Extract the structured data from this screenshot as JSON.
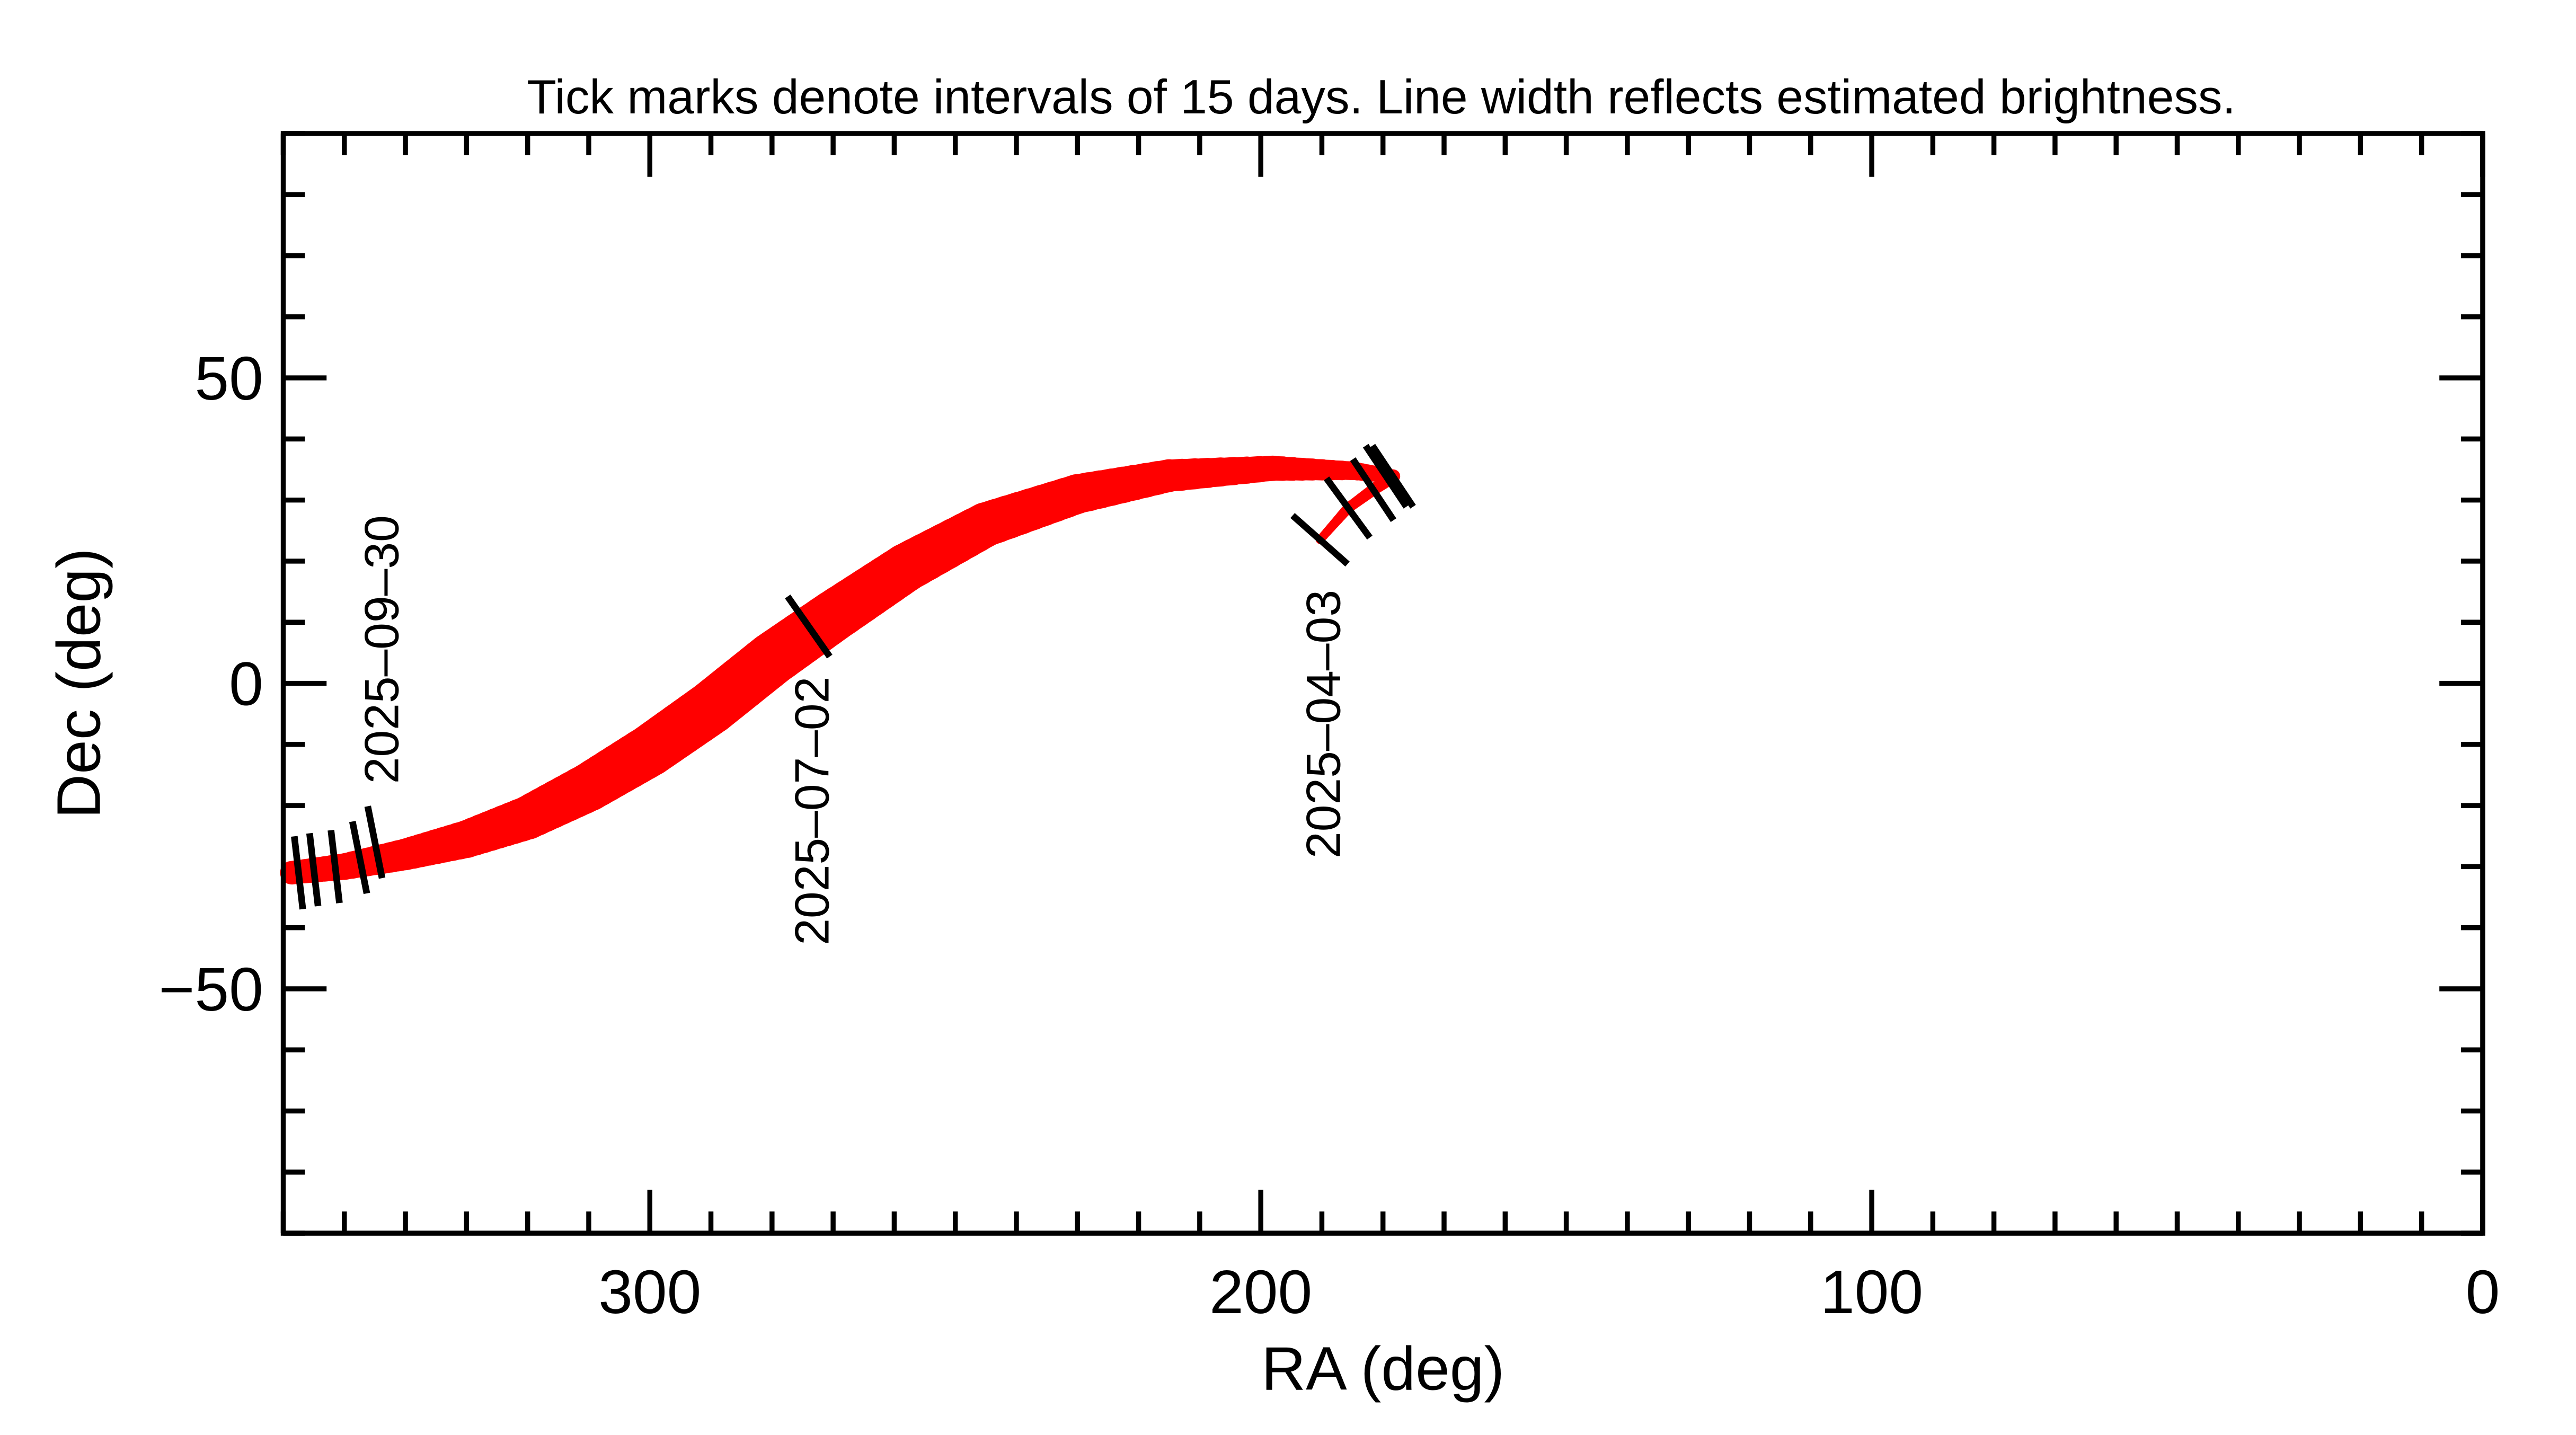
{
  "chart_data": {
    "type": "line",
    "title": "Tick marks denote intervals of 15 days.  Line width reflects estimated brightness.",
    "xlabel": "RA (deg)",
    "ylabel": "Dec (deg)",
    "xlim": [
      360,
      0
    ],
    "ylim": [
      -90,
      90
    ],
    "x_ticks": [
      300,
      200,
      100,
      0
    ],
    "y_ticks": [
      50,
      0,
      -50
    ],
    "x_tick_labels": [
      "300",
      "200",
      "100",
      "0"
    ],
    "y_tick_labels": [
      "50",
      "0",
      "−50"
    ],
    "grid": false,
    "line_color": "#ff0000",
    "track": [
      {
        "ra": 190.3,
        "dec": 23.5,
        "brightness": 0.1
      },
      {
        "ra": 185.7,
        "dec": 28.7,
        "brightness": 0.14
      },
      {
        "ra": 181.6,
        "dec": 31.7,
        "brightness": 0.17
      },
      {
        "ra": 178.3,
        "dec": 33.9,
        "brightness": 0.2
      },
      {
        "ra": 185.0,
        "dec": 34.8,
        "brightness": 0.3
      },
      {
        "ra": 198.0,
        "dec": 35.2,
        "brightness": 0.43
      },
      {
        "ra": 215.0,
        "dec": 34.0,
        "brightness": 0.58
      },
      {
        "ra": 230.0,
        "dec": 31.0,
        "brightness": 0.72
      },
      {
        "ra": 245.0,
        "dec": 26.0,
        "brightness": 0.82
      },
      {
        "ra": 258.0,
        "dec": 19.0,
        "brightness": 0.9
      },
      {
        "ra": 270.0,
        "dec": 11.0,
        "brightness": 0.96
      },
      {
        "ra": 280.0,
        "dec": 4.0,
        "brightness": 1.0
      },
      {
        "ra": 290.0,
        "dec": -4.0,
        "brightness": 1.0
      },
      {
        "ra": 300.0,
        "dec": -11.0,
        "brightness": 0.97
      },
      {
        "ra": 310.0,
        "dec": -17.0,
        "brightness": 0.9
      },
      {
        "ra": 320.0,
        "dec": -22.0,
        "brightness": 0.8
      },
      {
        "ra": 330.0,
        "dec": -25.5,
        "brightness": 0.68
      },
      {
        "ra": 340.0,
        "dec": -28.0,
        "brightness": 0.56
      },
      {
        "ra": 350.0,
        "dec": -30.0,
        "brightness": 0.46
      },
      {
        "ra": 358.6,
        "dec": -31.0,
        "brightness": 0.4
      }
    ],
    "date_ticks": [
      {
        "ra": 190.3,
        "dec": 23.5,
        "label": "2025–04–03"
      },
      {
        "ra": 185.7,
        "dec": 28.7
      },
      {
        "ra": 181.6,
        "dec": 31.7
      },
      {
        "ra": 179.5,
        "dec": 33.9
      },
      {
        "ra": 178.4,
        "dec": 33.9
      },
      {
        "ra": 274.0,
        "dec": 9.3,
        "label": "2025–07–02"
      },
      {
        "ra": 345.0,
        "dec": -26.0,
        "label": "2025–09–30"
      },
      {
        "ra": 347.5,
        "dec": -28.5
      },
      {
        "ra": 351.5,
        "dec": -30.0
      },
      {
        "ra": 355.0,
        "dec": -30.5
      },
      {
        "ra": 357.5,
        "dec": -31.0
      }
    ]
  }
}
